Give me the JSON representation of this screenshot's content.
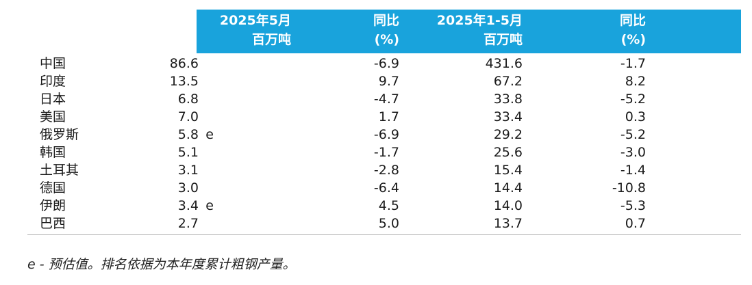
{
  "headers": {
    "col1_line1": "2025年5月",
    "col1_line2": "百万吨",
    "col2_line1": "同比",
    "col2_line2": "(%)",
    "col3_line1": "2025年1-5月",
    "col3_line2": "百万吨",
    "col4_line1": "同比",
    "col4_line2": "(%)"
  },
  "rows": [
    {
      "country": "中国",
      "may": "86.6",
      "may_flag": "",
      "may_yoy": "-6.9",
      "ytd": "431.6",
      "ytd_yoy": "-1.7"
    },
    {
      "country": "印度",
      "may": "13.5",
      "may_flag": "",
      "may_yoy": "9.7",
      "ytd": "67.2",
      "ytd_yoy": "8.2"
    },
    {
      "country": "日本",
      "may": "6.8",
      "may_flag": "",
      "may_yoy": "-4.7",
      "ytd": "33.8",
      "ytd_yoy": "-5.2"
    },
    {
      "country": "美国",
      "may": "7.0",
      "may_flag": "",
      "may_yoy": "1.7",
      "ytd": "33.4",
      "ytd_yoy": "0.3"
    },
    {
      "country": "俄罗斯",
      "may": "5.8",
      "may_flag": "e",
      "may_yoy": "-6.9",
      "ytd": "29.2",
      "ytd_yoy": "-5.2"
    },
    {
      "country": "韩国",
      "may": "5.1",
      "may_flag": "",
      "may_yoy": "-1.7",
      "ytd": "25.6",
      "ytd_yoy": "-3.0"
    },
    {
      "country": "土耳其",
      "may": "3.1",
      "may_flag": "",
      "may_yoy": "-2.8",
      "ytd": "15.4",
      "ytd_yoy": "-1.4"
    },
    {
      "country": "德国",
      "may": "3.0",
      "may_flag": "",
      "may_yoy": "-6.4",
      "ytd": "14.4",
      "ytd_yoy": "-10.8"
    },
    {
      "country": "伊朗",
      "may": "3.4",
      "may_flag": "e",
      "may_yoy": "4.5",
      "ytd": "14.0",
      "ytd_yoy": "-5.3"
    },
    {
      "country": "巴西",
      "may": "2.7",
      "may_flag": "",
      "may_yoy": "5.0",
      "ytd": "13.7",
      "ytd_yoy": "0.7"
    }
  ],
  "footnote": "e - 预估值。排名依据为本年度累计粗钢产量。",
  "colors": {
    "header_bg": "#19a3dc",
    "header_text": "#ffffff",
    "rule": "#b5b5b5"
  }
}
